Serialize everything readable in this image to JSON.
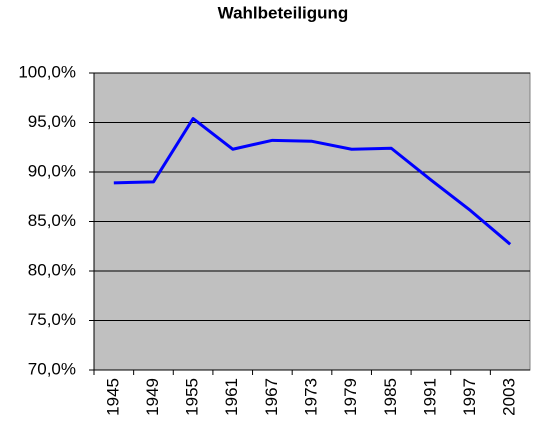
{
  "chart_data": {
    "type": "line",
    "title": "Wahlbeteiligung",
    "categories": [
      "1945",
      "1949",
      "1955",
      "1961",
      "1967",
      "1973",
      "1979",
      "1985",
      "1991",
      "1997",
      "2003"
    ],
    "series": [
      {
        "name": "Wahlbeteiligung",
        "color": "#0000ff",
        "values": [
          88.9,
          89.0,
          95.4,
          92.3,
          93.2,
          93.1,
          92.3,
          92.4,
          89.2,
          86.1,
          82.7
        ]
      }
    ],
    "ylim": [
      70,
      100
    ],
    "yticks": [
      {
        "value": 70,
        "label": "70,0%"
      },
      {
        "value": 75,
        "label": "75,0%"
      },
      {
        "value": 80,
        "label": "80,0%"
      },
      {
        "value": 85,
        "label": "85,0%"
      },
      {
        "value": 90,
        "label": "90,0%"
      },
      {
        "value": 95,
        "label": "95,0%"
      },
      {
        "value": 100,
        "label": "100,0%"
      }
    ],
    "grid": true,
    "plot_background": "#c0c0c0"
  }
}
